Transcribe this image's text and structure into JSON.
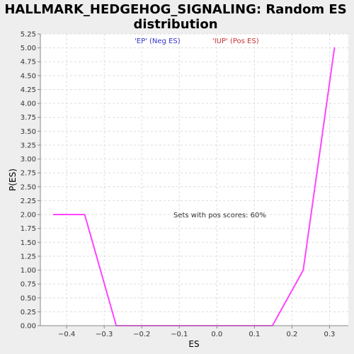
{
  "chart_data": {
    "type": "line",
    "title_lines": [
      "HALLMARK_HEDGEHOG_SIGNALING: Random ES",
      "distribution"
    ],
    "xlabel": "ES",
    "ylabel": "P(ES)",
    "xlim": [
      -0.47,
      0.35
    ],
    "ylim": [
      0,
      5.25
    ],
    "x_ticks": [
      -0.4,
      -0.3,
      -0.2,
      -0.1,
      0.0,
      0.1,
      0.2,
      0.3
    ],
    "x_tick_labels": [
      "−0.4",
      "−0.3",
      "−0.2",
      "−0.1",
      "0.0",
      "0.1",
      "0.2",
      "0.3"
    ],
    "y_ticks": [
      0,
      0.25,
      0.5,
      0.75,
      1,
      1.25,
      1.5,
      1.75,
      2,
      2.25,
      2.5,
      2.75,
      3,
      3.25,
      3.5,
      3.75,
      4,
      4.25,
      4.5,
      4.75,
      5,
      5.25
    ],
    "y_tick_labels": [
      "0.00",
      "0.25",
      "0.50",
      "0.75",
      "1.00",
      "1.25",
      "1.50",
      "1.75",
      "2.00",
      "2.25",
      "2.50",
      "2.75",
      "3.00",
      "3.25",
      "3.50",
      "3.75",
      "4.00",
      "4.25",
      "4.50",
      "4.75",
      "5.00",
      "5.25"
    ],
    "grid": true,
    "series": [
      {
        "color": "#ff44ff",
        "x": [
          -0.435,
          -0.352,
          -0.268,
          0.148,
          0.23,
          0.313
        ],
        "y": [
          2.0,
          2.0,
          0.0,
          0.0,
          1.0,
          5.0
        ]
      }
    ],
    "legend": [
      {
        "text": "'EP' (Neg ES)",
        "color": "#3333cc"
      },
      {
        "text": "'IUP' (Pos ES)",
        "color": "#cc3333"
      }
    ],
    "annotation": "Sets with pos scores: 60%"
  }
}
